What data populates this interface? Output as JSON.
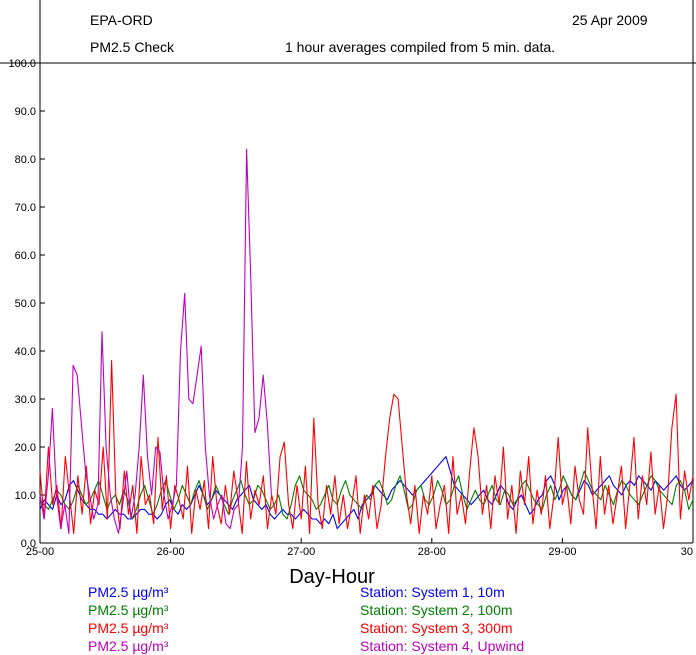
{
  "header": {
    "site": "EPA-ORD",
    "date": "25 Apr 2009",
    "check": "PM2.5 Check",
    "note": "1 hour averages compiled from 5 min. data."
  },
  "chart_data": {
    "type": "line",
    "title": "",
    "xlabel": "Day-Hour",
    "ylabel": "",
    "xlim": [
      25,
      30
    ],
    "ylim": [
      0,
      100
    ],
    "x_ticks": [
      "25-00",
      "26-00",
      "27-00",
      "28-00",
      "29-00",
      "30"
    ],
    "y_ticks": [
      "0.0",
      "10.0",
      "20.0",
      "30.0",
      "40.0",
      "50.0",
      "60.0",
      "70.0",
      "80.0",
      "90.0",
      "100.0"
    ],
    "grid": false,
    "legend_position": "bottom",
    "series": [
      {
        "name": "Station: System 1, 10m",
        "param": "PM2.5  µg/m³",
        "color": "#0000ff",
        "values": [
          7,
          9,
          8,
          7,
          10,
          8,
          9,
          12,
          13,
          11,
          9,
          8,
          7,
          7,
          6,
          6,
          5,
          6,
          7,
          6,
          6,
          5,
          5,
          6,
          7,
          7,
          6,
          6,
          5,
          6,
          8,
          9,
          7,
          6,
          8,
          7,
          8,
          10,
          12,
          10,
          8,
          9,
          11,
          10,
          9,
          8,
          7,
          9,
          10,
          11,
          12,
          9,
          8,
          7,
          8,
          6,
          5,
          6,
          7,
          6,
          6,
          5,
          6,
          7,
          6,
          5,
          5,
          4,
          5,
          4,
          6,
          3,
          4,
          5,
          6,
          7,
          5,
          8,
          9,
          10,
          12,
          11,
          10,
          9,
          11,
          12,
          13,
          12,
          11,
          10,
          11,
          12,
          13,
          14,
          15,
          16,
          17,
          18,
          15,
          12,
          11,
          10,
          9,
          8,
          9,
          10,
          11,
          9,
          8,
          10,
          12,
          11,
          8,
          7,
          9,
          10,
          8,
          6,
          7,
          9,
          10,
          13,
          14,
          12,
          9,
          11,
          12,
          10,
          9,
          11,
          13,
          12,
          10,
          11,
          12,
          13,
          14,
          12,
          11,
          10,
          12,
          13,
          12,
          14,
          13,
          12,
          11,
          13,
          12,
          11,
          12,
          13,
          14,
          12,
          11,
          12,
          13
        ]
      },
      {
        "name": "Station: System 2, 100m",
        "param": "PM2.5  µg/m³",
        "color": "#008000",
        "values": [
          9,
          8,
          7,
          9,
          11,
          10,
          8,
          7,
          9,
          12,
          10,
          8,
          9,
          11,
          13,
          10,
          7,
          9,
          10,
          8,
          11,
          9,
          5,
          7,
          10,
          12,
          9,
          6,
          8,
          11,
          13,
          10,
          7,
          9,
          12,
          10,
          8,
          11,
          13,
          10,
          7,
          9,
          12,
          10,
          8,
          6,
          9,
          11,
          13,
          10,
          8,
          9,
          12,
          11,
          9,
          7,
          8,
          10,
          6,
          5,
          8,
          12,
          14,
          11,
          10,
          9,
          7,
          8,
          10,
          12,
          9,
          8,
          11,
          13,
          10,
          9,
          8,
          7,
          10,
          9,
          12,
          13,
          11,
          8,
          9,
          12,
          14,
          11,
          7,
          8,
          11,
          12,
          9,
          8,
          10,
          13,
          11,
          8,
          9,
          12,
          14,
          10,
          7,
          9,
          11,
          9,
          8,
          10,
          12,
          9,
          8,
          11,
          10,
          8,
          9,
          12,
          13,
          11,
          9,
          8,
          7,
          10,
          12,
          9,
          11,
          14,
          12,
          10,
          9,
          12,
          15,
          13,
          11,
          10,
          9,
          12,
          10,
          8,
          11,
          13,
          12,
          10,
          9,
          8,
          10,
          12,
          14,
          13,
          11,
          10,
          9,
          8,
          12,
          13,
          11,
          7,
          9
        ]
      },
      {
        "name": "Station: System 3, 300m",
        "param": "PM2.5  µg/m³",
        "color": "#ff0000",
        "values": [
          15,
          5,
          20,
          8,
          12,
          3,
          18,
          10,
          2,
          14,
          6,
          16,
          4,
          11,
          8,
          20,
          5,
          38,
          10,
          3,
          15,
          6,
          12,
          2,
          18,
          8,
          10,
          4,
          22,
          7,
          14,
          3,
          12,
          9,
          5,
          16,
          2,
          11,
          7,
          13,
          3,
          18,
          8,
          4,
          12,
          6,
          15,
          9,
          2,
          17,
          5,
          11,
          8,
          14,
          3,
          10,
          6,
          18,
          21,
          8,
          3,
          12,
          5,
          16,
          2,
          26,
          8,
          3,
          12,
          6,
          14,
          4,
          10,
          3,
          8,
          14,
          2,
          10,
          5,
          12,
          3,
          8,
          18,
          26,
          31,
          30,
          20,
          10,
          4,
          12,
          2,
          10,
          6,
          14,
          3,
          8,
          12,
          2,
          18,
          6,
          10,
          4,
          15,
          24,
          18,
          6,
          12,
          3,
          14,
          8,
          20,
          5,
          12,
          2,
          15,
          8,
          18,
          4,
          11,
          6,
          14,
          3,
          10,
          22,
          8,
          12,
          4,
          16,
          9,
          6,
          24,
          12,
          3,
          18,
          6,
          12,
          4,
          10,
          16,
          3,
          12,
          22,
          5,
          14,
          8,
          19,
          6,
          12,
          3,
          10,
          24,
          31,
          5,
          15,
          9,
          14
        ]
      },
      {
        "name": "Station: System 4, Upwind",
        "param": "PM2.5  µg/m³",
        "color": "#c000c0",
        "values": [
          10,
          5,
          14,
          28,
          10,
          3,
          8,
          2,
          37,
          35,
          25,
          15,
          10,
          5,
          8,
          44,
          20,
          10,
          5,
          2,
          8,
          15,
          5,
          10,
          20,
          35,
          18,
          10,
          20,
          19,
          10,
          5,
          8,
          12,
          40,
          52,
          30,
          29,
          35,
          41,
          20,
          10,
          5,
          8,
          10,
          4,
          3,
          7,
          8,
          20,
          82,
          55,
          23,
          26,
          35,
          25,
          10,
          null,
          null,
          null,
          null,
          null,
          null,
          null,
          null,
          null,
          null,
          null,
          null,
          null,
          null,
          null,
          null,
          null,
          null,
          null,
          null,
          null,
          null,
          null,
          null,
          null,
          null,
          null,
          null,
          null,
          null,
          null,
          null,
          null,
          null,
          null,
          null,
          null,
          null,
          null,
          null,
          null,
          null,
          null,
          null,
          null,
          null,
          null,
          null,
          null,
          null,
          null,
          null,
          null,
          null,
          null,
          null,
          null,
          null,
          null,
          null,
          null,
          null,
          null,
          null,
          null,
          null,
          null,
          null,
          null,
          null,
          null,
          null,
          null,
          null,
          null,
          null,
          null,
          null,
          null,
          null,
          null,
          null,
          null,
          null,
          null,
          null,
          null,
          null,
          null,
          null,
          null,
          null,
          null,
          null,
          null,
          null,
          null,
          null,
          null,
          null,
          null,
          null
        ]
      }
    ]
  }
}
